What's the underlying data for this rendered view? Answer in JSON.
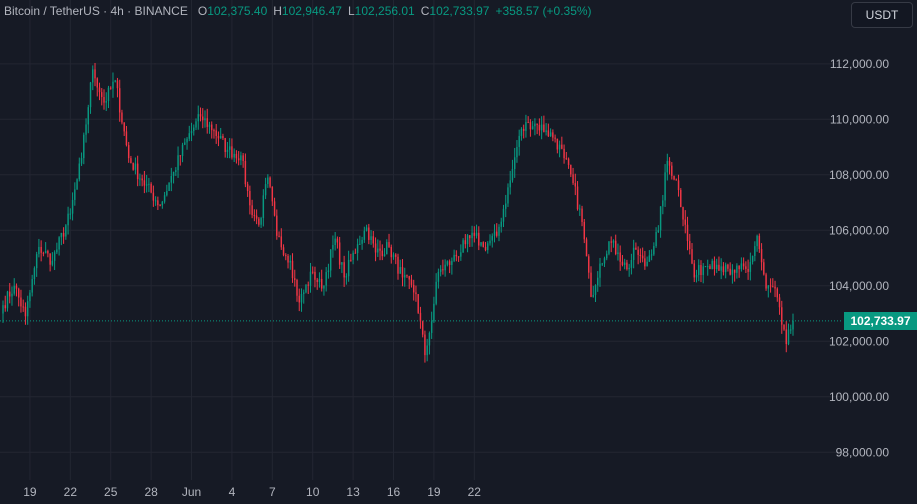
{
  "header": {
    "symbol": "Bitcoin / TetherUS · 4h · BINANCE",
    "open_label": "O",
    "open": "102,375.40",
    "high_label": "H",
    "high": "102,946.47",
    "low_label": "L",
    "low": "102,256.01",
    "close_label": "C",
    "close": "102,733.97",
    "change": "+358.57 (+0.35%)"
  },
  "currency_button": "USDT",
  "current_price_label": "102,733.97",
  "colors": {
    "background": "#161a25",
    "grid": "#232632",
    "up": "#089981",
    "down": "#f23645",
    "text": "#b2b5be"
  },
  "chart_data": {
    "type": "candlestick",
    "ylim": [
      97000,
      114300
    ],
    "yticks": [
      98000,
      100000,
      102000,
      104000,
      106000,
      108000,
      110000,
      112000
    ],
    "ytick_labels": [
      "98,000.00",
      "100,000.00",
      "102,000.00",
      "104,000.00",
      "106,000.00",
      "108,000.00",
      "110,000.00",
      "112,000.00"
    ],
    "xtick_labels": [
      "19",
      "22",
      "25",
      "28",
      "Jun",
      "4",
      "7",
      "10",
      "13",
      "16",
      "19",
      "22"
    ],
    "current_price": 102733.97,
    "anchors": [
      [
        0,
        103300
      ],
      [
        5,
        104000
      ],
      [
        10,
        102900
      ],
      [
        16,
        105400
      ],
      [
        22,
        104900
      ],
      [
        30,
        106600
      ],
      [
        35,
        108600
      ],
      [
        40,
        111800
      ],
      [
        45,
        110600
      ],
      [
        50,
        111400
      ],
      [
        56,
        108600
      ],
      [
        62,
        107800
      ],
      [
        70,
        106900
      ],
      [
        76,
        108100
      ],
      [
        82,
        109300
      ],
      [
        88,
        110100
      ],
      [
        94,
        109600
      ],
      [
        100,
        108900
      ],
      [
        106,
        108700
      ],
      [
        110,
        106900
      ],
      [
        114,
        106200
      ],
      [
        118,
        107900
      ],
      [
        122,
        105800
      ],
      [
        128,
        104900
      ],
      [
        132,
        103400
      ],
      [
        138,
        104500
      ],
      [
        142,
        103900
      ],
      [
        148,
        105700
      ],
      [
        152,
        104300
      ],
      [
        158,
        105500
      ],
      [
        162,
        106100
      ],
      [
        166,
        105200
      ],
      [
        172,
        105400
      ],
      [
        178,
        104300
      ],
      [
        184,
        103700
      ],
      [
        188,
        101500
      ],
      [
        190,
        102300
      ],
      [
        194,
        104500
      ],
      [
        200,
        104900
      ],
      [
        206,
        105500
      ],
      [
        210,
        105800
      ],
      [
        214,
        105400
      ],
      [
        220,
        105800
      ],
      [
        226,
        107800
      ],
      [
        230,
        109400
      ],
      [
        234,
        109900
      ],
      [
        238,
        109800
      ],
      [
        242,
        109600
      ],
      [
        246,
        109300
      ],
      [
        250,
        108600
      ],
      [
        254,
        107700
      ],
      [
        258,
        106300
      ],
      [
        262,
        103600
      ],
      [
        266,
        104800
      ],
      [
        270,
        105600
      ],
      [
        274,
        105200
      ],
      [
        278,
        104600
      ],
      [
        282,
        105300
      ],
      [
        286,
        104700
      ],
      [
        292,
        106000
      ],
      [
        296,
        108500
      ],
      [
        300,
        107800
      ],
      [
        304,
        106200
      ],
      [
        308,
        104300
      ],
      [
        312,
        104700
      ],
      [
        316,
        104900
      ],
      [
        320,
        104700
      ],
      [
        324,
        104400
      ],
      [
        328,
        104600
      ],
      [
        332,
        104500
      ],
      [
        336,
        105800
      ],
      [
        340,
        103900
      ],
      [
        344,
        103900
      ],
      [
        347,
        102600
      ],
      [
        349,
        101900
      ],
      [
        352,
        102733.97
      ]
    ]
  }
}
